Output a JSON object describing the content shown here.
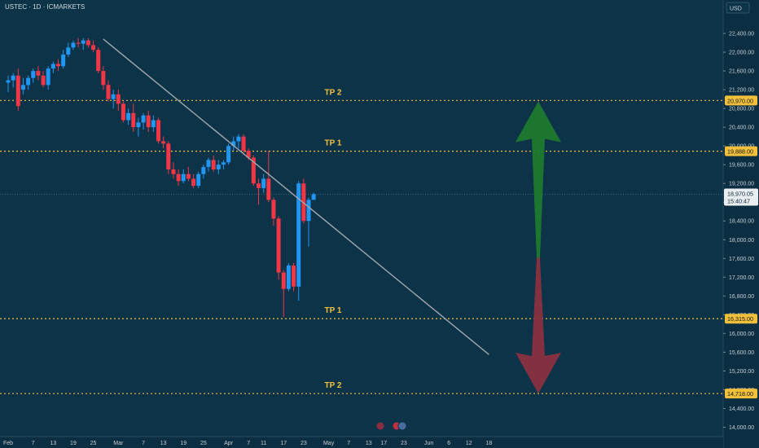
{
  "header": {
    "symbol": "USTEC · 1D · ICMARKETS",
    "currency": "USD"
  },
  "chart_data": {
    "type": "candlestick",
    "price_axis": {
      "ylim": [
        13800,
        22800
      ],
      "ticks": [
        22400,
        22000,
        21600,
        21200,
        20800,
        20400,
        20000,
        19600,
        19200,
        18800,
        18400,
        18000,
        17600,
        17200,
        16800,
        16400,
        16000,
        15600,
        15200,
        14800,
        14400,
        14000
      ],
      "tick_labels": [
        "22,400.00",
        "22,000.00",
        "21,600.00",
        "21,200.00",
        "20,800.00",
        "20,400.00",
        "20,000.00",
        "19,600.00",
        "19,200.00",
        "18,800.00",
        "18,400.00",
        "18,000.00",
        "17,600.00",
        "17,200.00",
        "16,800.00",
        "16,400.00",
        "16,000.00",
        "15,600.00",
        "15,200.00",
        "14,800.00",
        "14,400.00",
        "14,000.00"
      ]
    },
    "time_axis": {
      "labels": [
        "Feb",
        "7",
        "13",
        "19",
        "25",
        "Mar",
        "7",
        "13",
        "19",
        "25",
        "Apr",
        "7",
        "11",
        "17",
        "23",
        "May",
        "7",
        "13",
        "17",
        "23",
        "Jun",
        "6",
        "12",
        "18"
      ],
      "label_bar_index": [
        0,
        5,
        9,
        13,
        17,
        22,
        27,
        31,
        35,
        39,
        44,
        48,
        51,
        55,
        59,
        64,
        68,
        72,
        75,
        79,
        84,
        88,
        92,
        96
      ]
    },
    "candles": [
      {
        "o": 21350,
        "h": 21500,
        "l": 21150,
        "c": 21400
      },
      {
        "o": 21400,
        "h": 21550,
        "l": 21250,
        "c": 21500
      },
      {
        "o": 21500,
        "h": 21650,
        "l": 20750,
        "c": 20850
      },
      {
        "o": 21200,
        "h": 21450,
        "l": 21100,
        "c": 21300
      },
      {
        "o": 21300,
        "h": 21500,
        "l": 21200,
        "c": 21450
      },
      {
        "o": 21450,
        "h": 21650,
        "l": 21350,
        "c": 21600
      },
      {
        "o": 21600,
        "h": 21700,
        "l": 21400,
        "c": 21500
      },
      {
        "o": 21500,
        "h": 21600,
        "l": 21250,
        "c": 21300
      },
      {
        "o": 21300,
        "h": 21700,
        "l": 21200,
        "c": 21650
      },
      {
        "o": 21650,
        "h": 21800,
        "l": 21550,
        "c": 21750
      },
      {
        "o": 21750,
        "h": 21850,
        "l": 21600,
        "c": 21700
      },
      {
        "o": 21700,
        "h": 22050,
        "l": 21650,
        "c": 21950
      },
      {
        "o": 21950,
        "h": 22200,
        "l": 21900,
        "c": 22100
      },
      {
        "o": 22100,
        "h": 22250,
        "l": 22050,
        "c": 22200
      },
      {
        "o": 22200,
        "h": 22300,
        "l": 22100,
        "c": 22180
      },
      {
        "o": 22180,
        "h": 22300,
        "l": 22050,
        "c": 22250
      },
      {
        "o": 22250,
        "h": 22300,
        "l": 22100,
        "c": 22150
      },
      {
        "o": 22150,
        "h": 22250,
        "l": 22000,
        "c": 22050
      },
      {
        "o": 22050,
        "h": 22100,
        "l": 21550,
        "c": 21600
      },
      {
        "o": 21600,
        "h": 21700,
        "l": 21200,
        "c": 21300
      },
      {
        "o": 21300,
        "h": 21400,
        "l": 20950,
        "c": 21000
      },
      {
        "o": 21000,
        "h": 21200,
        "l": 20800,
        "c": 21100
      },
      {
        "o": 21100,
        "h": 21200,
        "l": 20750,
        "c": 20900
      },
      {
        "o": 20900,
        "h": 20950,
        "l": 20500,
        "c": 20550
      },
      {
        "o": 20550,
        "h": 20800,
        "l": 20450,
        "c": 20700
      },
      {
        "o": 20700,
        "h": 20900,
        "l": 20300,
        "c": 20400
      },
      {
        "o": 20400,
        "h": 20600,
        "l": 20200,
        "c": 20500
      },
      {
        "o": 20500,
        "h": 20700,
        "l": 20350,
        "c": 20650
      },
      {
        "o": 20650,
        "h": 20750,
        "l": 20300,
        "c": 20400
      },
      {
        "o": 20400,
        "h": 20650,
        "l": 20300,
        "c": 20550
      },
      {
        "o": 20550,
        "h": 20600,
        "l": 20050,
        "c": 20100
      },
      {
        "o": 20100,
        "h": 20200,
        "l": 19950,
        "c": 20050
      },
      {
        "o": 20050,
        "h": 20100,
        "l": 19400,
        "c": 19500
      },
      {
        "o": 19500,
        "h": 19650,
        "l": 19300,
        "c": 19400
      },
      {
        "o": 19400,
        "h": 19500,
        "l": 19150,
        "c": 19250
      },
      {
        "o": 19250,
        "h": 19500,
        "l": 19200,
        "c": 19400
      },
      {
        "o": 19400,
        "h": 19550,
        "l": 19250,
        "c": 19300
      },
      {
        "o": 19300,
        "h": 19400,
        "l": 19100,
        "c": 19150
      },
      {
        "o": 19150,
        "h": 19450,
        "l": 19100,
        "c": 19400
      },
      {
        "o": 19400,
        "h": 19600,
        "l": 19300,
        "c": 19550
      },
      {
        "o": 19550,
        "h": 19750,
        "l": 19450,
        "c": 19700
      },
      {
        "o": 19700,
        "h": 19800,
        "l": 19450,
        "c": 19500
      },
      {
        "o": 19500,
        "h": 19700,
        "l": 19400,
        "c": 19600
      },
      {
        "o": 19600,
        "h": 19700,
        "l": 19500,
        "c": 19650
      },
      {
        "o": 19650,
        "h": 20050,
        "l": 19600,
        "c": 20000
      },
      {
        "o": 20000,
        "h": 20200,
        "l": 19900,
        "c": 20100
      },
      {
        "o": 20100,
        "h": 20250,
        "l": 19950,
        "c": 20200
      },
      {
        "o": 20200,
        "h": 20250,
        "l": 19850,
        "c": 19900
      },
      {
        "o": 19900,
        "h": 19950,
        "l": 19700,
        "c": 19750
      },
      {
        "o": 19750,
        "h": 19800,
        "l": 19150,
        "c": 19200
      },
      {
        "o": 19200,
        "h": 19300,
        "l": 18750,
        "c": 19100
      },
      {
        "o": 19100,
        "h": 19400,
        "l": 19000,
        "c": 19300
      },
      {
        "o": 19300,
        "h": 19900,
        "l": 18800,
        "c": 18850
      },
      {
        "o": 18850,
        "h": 18900,
        "l": 18300,
        "c": 18450
      },
      {
        "o": 18450,
        "h": 18500,
        "l": 17150,
        "c": 17300
      },
      {
        "o": 17300,
        "h": 17350,
        "l": 16350,
        "c": 16950
      },
      {
        "o": 16950,
        "h": 17500,
        "l": 16900,
        "c": 17450
      },
      {
        "o": 17450,
        "h": 17500,
        "l": 16900,
        "c": 17000
      },
      {
        "o": 17000,
        "h": 19250,
        "l": 16700,
        "c": 19200
      },
      {
        "o": 19200,
        "h": 19300,
        "l": 18350,
        "c": 18400
      },
      {
        "o": 18400,
        "h": 18900,
        "l": 17850,
        "c": 18850
      },
      {
        "o": 18850,
        "h": 19000,
        "l": 18850,
        "c": 18970
      }
    ],
    "levels": [
      {
        "price": 20970,
        "label": "TP 2",
        "axis_label": "20,970.00"
      },
      {
        "price": 19888,
        "label": "TP 1",
        "axis_label": "19,888.00"
      },
      {
        "price": 16315,
        "label": "TP 1",
        "axis_label": "16,315.00"
      },
      {
        "price": 14718,
        "label": "TP 2",
        "axis_label": "14,718.00"
      }
    ],
    "current_price": {
      "price": 18970,
      "label": "18,970.05",
      "countdown": "15:40:47"
    },
    "trendline": {
      "start": {
        "bar": 19,
        "price": 22280
      },
      "end": {
        "bar": 96,
        "price": 15550
      }
    },
    "arrows": [
      {
        "direction": "up",
        "color": "#1e7a2e",
        "from_price": 17600,
        "to_price": 20950
      },
      {
        "direction": "down",
        "color": "#8a3040",
        "from_price": 17600,
        "to_price": 14720
      }
    ],
    "colors": {
      "up": "#2196f3",
      "down": "#f23645",
      "level": "#f2c03a",
      "trendline": "#a0a8ae",
      "axis_text": "#c6cdd2",
      "background": "#0d3349"
    }
  }
}
